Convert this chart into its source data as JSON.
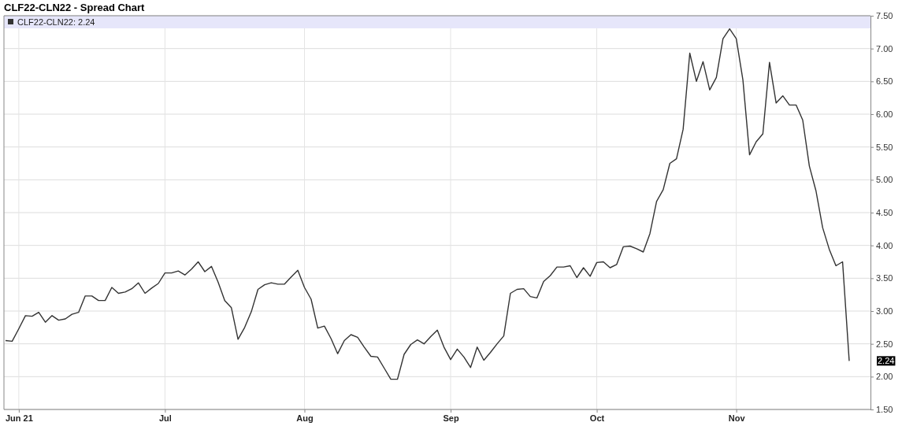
{
  "chart_data": {
    "type": "line",
    "title": "CLF22-CLN22 - Spread Chart",
    "categories": [
      null,
      null,
      "Jun 21",
      null,
      null,
      null,
      null,
      null,
      null,
      null,
      null,
      null,
      null,
      null,
      null,
      null,
      null,
      null,
      null,
      null,
      null,
      null,
      null,
      null,
      "Jul",
      null,
      null,
      null,
      null,
      null,
      null,
      null,
      null,
      null,
      null,
      null,
      null,
      null,
      null,
      null,
      null,
      null,
      null,
      null,
      null,
      "Aug",
      null,
      null,
      null,
      null,
      null,
      null,
      null,
      null,
      null,
      null,
      null,
      null,
      null,
      null,
      null,
      null,
      null,
      null,
      null,
      null,
      null,
      "Sep",
      null,
      null,
      null,
      null,
      null,
      null,
      null,
      null,
      null,
      null,
      null,
      null,
      null,
      null,
      null,
      null,
      null,
      null,
      null,
      null,
      null,
      "Oct",
      null,
      null,
      null,
      null,
      null,
      null,
      null,
      null,
      null,
      null,
      null,
      null,
      null,
      null,
      null,
      null,
      null,
      null,
      null,
      null,
      "Nov",
      null,
      null,
      null,
      null,
      null,
      null,
      null,
      null,
      null,
      null,
      null,
      null,
      null,
      null,
      null,
      null,
      null
    ],
    "annotations": [
      "2.24"
    ],
    "series": [
      {
        "name": "CLF22-CLN22: 2.24",
        "color": "#333333",
        "values": [
          2.55,
          2.54,
          2.73,
          2.93,
          2.92,
          2.98,
          2.83,
          2.93,
          2.86,
          2.88,
          2.95,
          2.98,
          3.23,
          3.23,
          3.16,
          3.16,
          3.36,
          3.27,
          3.29,
          3.34,
          3.43,
          3.27,
          3.35,
          3.42,
          3.58,
          3.58,
          3.61,
          3.55,
          3.64,
          3.75,
          3.6,
          3.68,
          3.44,
          3.16,
          3.05,
          2.57,
          2.75,
          2.99,
          3.33,
          3.4,
          3.43,
          3.41,
          3.41,
          3.52,
          3.62,
          3.36,
          3.18,
          2.74,
          2.77,
          2.58,
          2.35,
          2.55,
          2.64,
          2.6,
          2.45,
          2.31,
          2.3,
          2.13,
          1.96,
          1.96,
          2.34,
          2.49,
          2.56,
          2.5,
          2.61,
          2.71,
          2.45,
          2.26,
          2.42,
          2.3,
          2.14,
          2.45,
          2.25,
          2.37,
          2.5,
          2.62,
          3.27,
          3.33,
          3.34,
          3.22,
          3.2,
          3.45,
          3.54,
          3.67,
          3.67,
          3.69,
          3.51,
          3.66,
          3.53,
          3.74,
          3.75,
          3.66,
          3.71,
          3.98,
          3.99,
          3.95,
          3.9,
          4.18,
          4.67,
          4.85,
          5.25,
          5.32,
          5.77,
          6.93,
          6.5,
          6.8,
          6.37,
          6.56,
          7.15,
          7.3,
          7.15,
          6.52,
          5.38,
          5.58,
          5.7,
          6.79,
          6.17,
          6.28,
          6.14,
          6.14,
          5.91,
          5.21,
          4.83,
          4.27,
          3.94,
          3.69,
          3.75,
          2.24
        ]
      }
    ],
    "ylim": [
      1.5,
      7.5
    ],
    "yticks": [
      {
        "value": 1.5,
        "label": "1.50"
      },
      {
        "value": 2,
        "label": "2.00"
      },
      {
        "value": 2.5,
        "label": "2.50"
      },
      {
        "value": 3,
        "label": "3.00"
      },
      {
        "value": 3.5,
        "label": "3.50"
      },
      {
        "value": 4,
        "label": "4.00"
      },
      {
        "value": 4.5,
        "label": "4.50"
      },
      {
        "value": 5,
        "label": "5.00"
      },
      {
        "value": 5.5,
        "label": "5.50"
      },
      {
        "value": 6,
        "label": "6.00"
      },
      {
        "value": 6.5,
        "label": "6.50"
      },
      {
        "value": 7,
        "label": "7.00"
      },
      {
        "value": 7.5,
        "label": "7.50"
      }
    ],
    "grid": true,
    "legend": "top left",
    "marker": "none",
    "line_style": "solid"
  }
}
